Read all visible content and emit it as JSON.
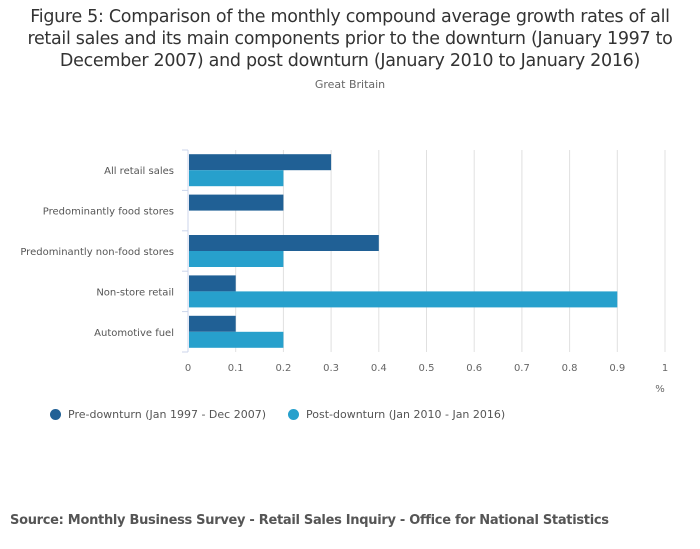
{
  "header": {
    "title": "Figure 5: Comparison of the monthly compound average growth rates of all retail sales and its main components prior to the downturn (January 1997 to December 2007) and post downturn (January 2010 to January 2016)",
    "subtitle": "Great Britain"
  },
  "chart_data": {
    "type": "bar",
    "orientation": "horizontal",
    "title": "Figure 5: Comparison of the monthly compound average growth rates of all retail sales and its main components prior to the downturn (January 1997 to December 2007) and post downturn (January 2010 to January 2016)",
    "subtitle": "Great Britain",
    "categories": [
      "All retail sales",
      "Predominantly food stores",
      "Predominantly non-food stores",
      "Non-store retail",
      "Automotive fuel"
    ],
    "series": [
      {
        "name": "Pre-downturn (Jan 1997 - Dec 2007)",
        "color": "#206095",
        "values": [
          0.3,
          0.2,
          0.4,
          0.1,
          0.1
        ]
      },
      {
        "name": "Post-downturn (Jan 2010 - Jan 2016)",
        "color": "#27a0cc",
        "values": [
          0.2,
          0.0,
          0.2,
          0.9,
          0.2
        ]
      }
    ],
    "xlabel": "%",
    "ylabel": "",
    "xlim": [
      0,
      1
    ],
    "xticks": [
      "0",
      "0.1",
      "0.2",
      "0.3",
      "0.4",
      "0.5",
      "0.6",
      "0.7",
      "0.8",
      "0.9",
      "1"
    ],
    "grid": true,
    "legend_position": "bottom-left"
  },
  "footer": {
    "source": "Source: Monthly Business Survey - Retail Sales Inquiry - Office for National Statistics"
  }
}
